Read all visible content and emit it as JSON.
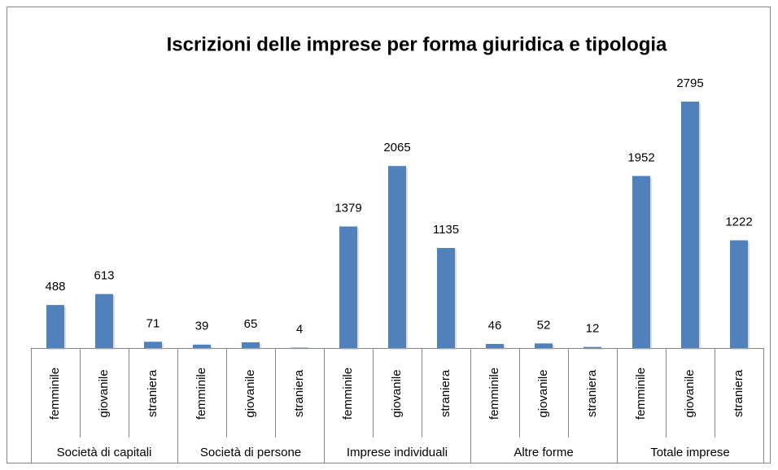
{
  "chart_data": {
    "type": "bar",
    "title": "Iscrizioni delle imprese per forma giuridica e tipologia",
    "color": "#4f81bd",
    "groups": [
      {
        "label": "Società di capitali",
        "categories": [
          "femminile",
          "giovanile",
          "straniera"
        ],
        "values": [
          488,
          613,
          71
        ]
      },
      {
        "label": "Società di persone",
        "categories": [
          "femminile",
          "giovanile",
          "straniera"
        ],
        "values": [
          39,
          65,
          4
        ]
      },
      {
        "label": "Imprese individuali",
        "categories": [
          "femminile",
          "giovanile",
          "straniera"
        ],
        "values": [
          1379,
          2065,
          1135
        ]
      },
      {
        "label": "Altre forme",
        "categories": [
          "femminile",
          "giovanile",
          "straniera"
        ],
        "values": [
          46,
          52,
          12
        ]
      },
      {
        "label": "Totale imprese",
        "categories": [
          "femminile",
          "giovanile",
          "straniera"
        ],
        "values": [
          1952,
          2795,
          1222
        ]
      }
    ]
  }
}
